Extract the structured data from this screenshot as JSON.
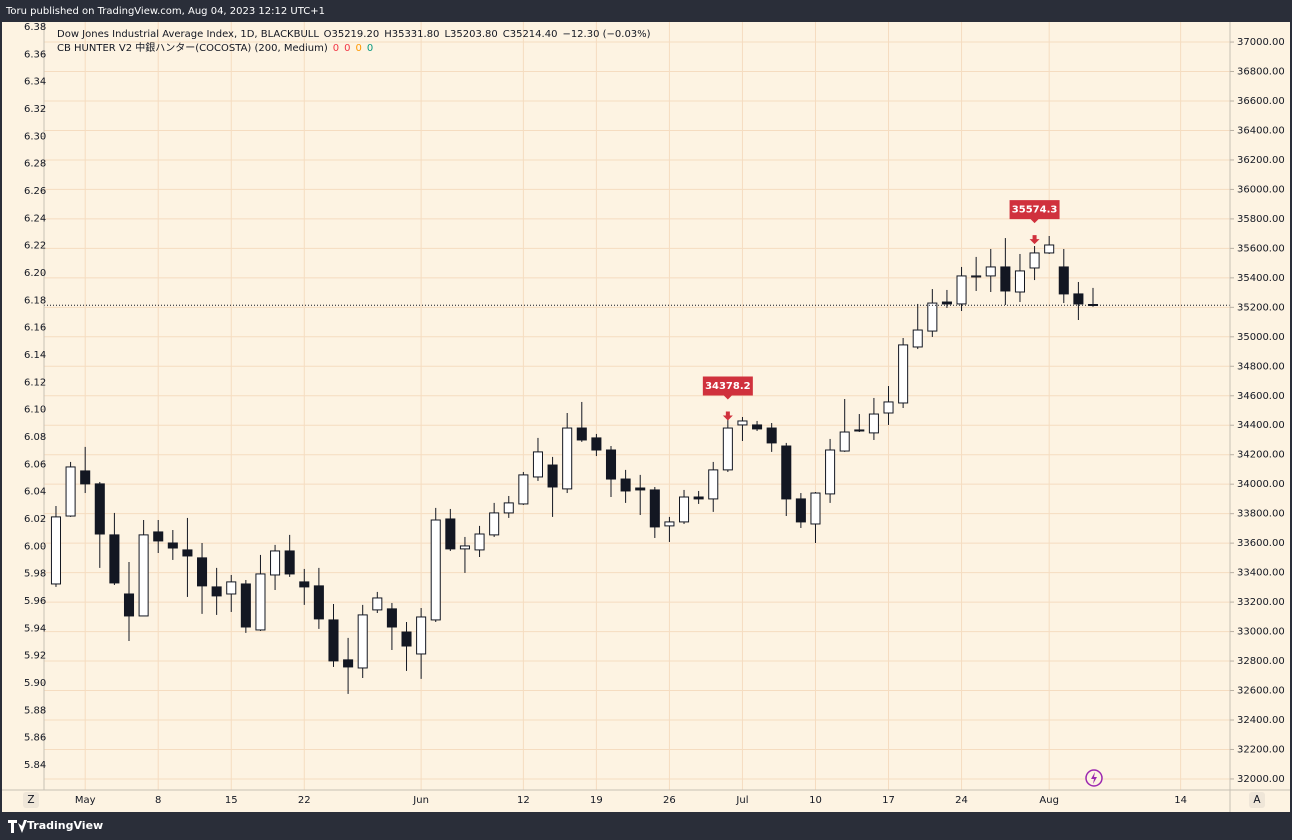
{
  "header": {
    "published": "Toru published on TradingView.com, Aug 04, 2023 12:12 UTC+1",
    "brand": "TradingView"
  },
  "chart_data": {
    "type": "candlestick",
    "legend": {
      "symbol": "Dow Jones Industrial Average Index, 1D, BLACKBULL",
      "items": [
        {
          "label": "O",
          "value": "35219.20"
        },
        {
          "label": "H",
          "value": "35331.80"
        },
        {
          "label": "L",
          "value": "35203.80"
        },
        {
          "label": "C",
          "value": "35214.40"
        }
      ],
      "change": "−12.30 (−0.03%)"
    },
    "indicator": {
      "name": "CB HUNTER V2 中銀ハンター(COCOSTA) (200, Medium)",
      "values": [
        0,
        0,
        0,
        0
      ],
      "colors": [
        "#f23645",
        "#f23645",
        "#ff9800",
        "#089981"
      ]
    },
    "categories": [
      null,
      null,
      "May",
      null,
      null,
      null,
      null,
      "8",
      null,
      null,
      null,
      null,
      "15",
      null,
      null,
      null,
      null,
      "22",
      null,
      null,
      null,
      null,
      null,
      null,
      null,
      "Jun",
      null,
      null,
      null,
      null,
      null,
      null,
      "12",
      null,
      null,
      null,
      null,
      "19",
      null,
      null,
      null,
      null,
      "26",
      null,
      null,
      null,
      null,
      "Jul",
      null,
      null,
      null,
      null,
      "10",
      null,
      null,
      null,
      null,
      "17",
      null,
      null,
      null,
      null,
      "24",
      null,
      null,
      null,
      null,
      null,
      "Aug",
      null,
      null,
      null,
      null,
      null,
      null,
      null,
      null,
      "14"
    ],
    "open": [
      33323,
      33784,
      34090,
      34002,
      33656,
      33255,
      33106,
      33676,
      33601,
      33554,
      33500,
      33303,
      33255,
      33323,
      33011,
      33384,
      33547,
      33337,
      33310,
      33079,
      32808,
      32753,
      33147,
      33154,
      32997,
      32848,
      33079,
      33764,
      33561,
      33554,
      33656,
      33805,
      33866,
      34049,
      34130,
      33968,
      34381,
      34314,
      34232,
      34035,
      33974,
      33961,
      33717,
      33744,
      33913,
      33900,
      34097,
      34402,
      34402,
      34381,
      34259,
      33900,
      33730,
      33934,
      34225,
      34368,
      34348,
      34483,
      34551,
      34931,
      35039,
      35236,
      35223,
      35406,
      35413,
      35474,
      35304,
      35467,
      35569,
      35474,
      35291,
      35219.2,
      null,
      null,
      null,
      null,
      null,
      null
    ],
    "high": [
      33852,
      34151,
      34253,
      34015,
      33805,
      33472,
      33757,
      33757,
      33689,
      33771,
      33601,
      33432,
      33384,
      33350,
      33520,
      33588,
      33656,
      33425,
      33432,
      33187,
      32957,
      33181,
      33269,
      33194,
      33065,
      33160,
      33839,
      33832,
      33642,
      33717,
      33873,
      33920,
      34083,
      34314,
      34185,
      34483,
      34558,
      34341,
      34259,
      34097,
      34063,
      33981,
      33778,
      33961,
      33954,
      34151,
      34456,
      34456,
      34429,
      34415,
      34280,
      33940,
      33947,
      34307,
      34578,
      34476,
      34585,
      34666,
      34992,
      35223,
      35324,
      35318,
      35474,
      35542,
      35596,
      35670,
      35562,
      35616,
      35684,
      35596,
      35372,
      35331.8,
      null,
      null,
      null,
      null,
      null,
      null
    ],
    "low": [
      33303,
      33778,
      33940,
      33432,
      33316,
      32936,
      33106,
      33533,
      33486,
      33235,
      33120,
      33113,
      33133,
      32991,
      33004,
      33282,
      33371,
      33181,
      33018,
      32760,
      32577,
      32685,
      33126,
      32875,
      32733,
      32679,
      33065,
      33547,
      33398,
      33506,
      33642,
      33771,
      33859,
      34022,
      33778,
      33940,
      34287,
      34191,
      33913,
      33873,
      33791,
      33635,
      33608,
      33730,
      33866,
      33812,
      34083,
      34293,
      34361,
      34219,
      33784,
      33703,
      33601,
      33873,
      34219,
      34354,
      34300,
      34402,
      34517,
      34917,
      34999,
      35196,
      35175,
      35311,
      35304,
      35216,
      35236,
      35385,
      35562,
      35229,
      35114,
      35203.8,
      null,
      null,
      null,
      null,
      null,
      null
    ],
    "close": [
      33778,
      34117,
      34002,
      33662,
      33330,
      33106,
      33656,
      33615,
      33567,
      33513,
      33310,
      33242,
      33337,
      33031,
      33391,
      33547,
      33391,
      33303,
      33086,
      32801,
      32760,
      33113,
      33228,
      33031,
      32902,
      33099,
      33757,
      33561,
      33581,
      33662,
      33805,
      33873,
      34063,
      34219,
      33981,
      34381,
      34300,
      34232,
      34035,
      33954,
      33961,
      33710,
      33744,
      33913,
      33900,
      34097,
      34381,
      34429,
      34375,
      34280,
      33900,
      33744,
      33940,
      34232,
      34354,
      34361,
      34476,
      34558,
      34945,
      35046,
      35229,
      35223,
      35413,
      35413,
      35474,
      35311,
      35447,
      35569,
      35623,
      35291,
      35223,
      35214.4,
      null,
      null,
      null,
      null,
      null,
      null
    ],
    "signals": [
      null,
      null,
      null,
      null,
      null,
      null,
      null,
      null,
      null,
      null,
      null,
      null,
      null,
      null,
      null,
      null,
      null,
      null,
      null,
      null,
      null,
      null,
      null,
      null,
      null,
      null,
      null,
      null,
      null,
      null,
      null,
      null,
      null,
      null,
      null,
      null,
      null,
      null,
      null,
      null,
      null,
      null,
      null,
      null,
      null,
      null,
      34378.2,
      null,
      null,
      null,
      null,
      null,
      null,
      null,
      null,
      null,
      null,
      null,
      null,
      null,
      null,
      null,
      null,
      null,
      null,
      null,
      null,
      35574.3,
      null,
      null,
      null,
      null,
      null,
      null,
      null,
      null,
      null,
      null
    ],
    "up_color": "#ffffff",
    "down_color": "#131722",
    "border_color": "#131722",
    "signal_color": "#d0313d",
    "ylim": [
      31925,
      37136
    ],
    "yticks": [
      {
        "value": 37000,
        "label": "37000.00"
      },
      {
        "value": 36800,
        "label": "36800.00"
      },
      {
        "value": 36600,
        "label": "36600.00"
      },
      {
        "value": 36400,
        "label": "36400.00"
      },
      {
        "value": 36200,
        "label": "36200.00"
      },
      {
        "value": 36000,
        "label": "36000.00"
      },
      {
        "value": 35800,
        "label": "35800.00"
      },
      {
        "value": 35600,
        "label": "35600.00"
      },
      {
        "value": 35400,
        "label": "35400.00"
      },
      {
        "value": 35200,
        "label": "35200.00"
      },
      {
        "value": 35000,
        "label": "35000.00"
      },
      {
        "value": 34800,
        "label": "34800.00"
      },
      {
        "value": 34600,
        "label": "34600.00"
      },
      {
        "value": 34400,
        "label": "34400.00"
      },
      {
        "value": 34200,
        "label": "34200.00"
      },
      {
        "value": 34000,
        "label": "34000.00"
      },
      {
        "value": 33800,
        "label": "33800.00"
      },
      {
        "value": 33600,
        "label": "33600.00"
      },
      {
        "value": 33400,
        "label": "33400.00"
      },
      {
        "value": 33200,
        "label": "33200.00"
      },
      {
        "value": 33000,
        "label": "33000.00"
      },
      {
        "value": 32800,
        "label": "32800.00"
      },
      {
        "value": 32600,
        "label": "32600.00"
      },
      {
        "value": 32400,
        "label": "32400.00"
      },
      {
        "value": 32200,
        "label": "32200.00"
      },
      {
        "value": 32000,
        "label": "32000.00"
      }
    ],
    "y2lim": [
      5.8217,
      6.3837
    ],
    "y2ticks": [
      6.38,
      6.36,
      6.34,
      6.32,
      {
        "value": 6.3,
        "label": "6.30"
      },
      6.28,
      6.26,
      6.24,
      6.22,
      {
        "value": 6.2,
        "label": "6.20"
      },
      6.18,
      6.16,
      6.14,
      6.12,
      {
        "value": 6.1,
        "label": "6.10"
      },
      6.08,
      6.06,
      6.04,
      6.02,
      {
        "value": 6,
        "label": "6.00"
      },
      5.98,
      5.96,
      5.94,
      5.92,
      {
        "value": 5.9,
        "label": "5.90"
      },
      5.88,
      5.86,
      5.84
    ],
    "grid": true,
    "last_price_line": true,
    "buttons": {
      "left": "Z",
      "right": "A"
    }
  }
}
